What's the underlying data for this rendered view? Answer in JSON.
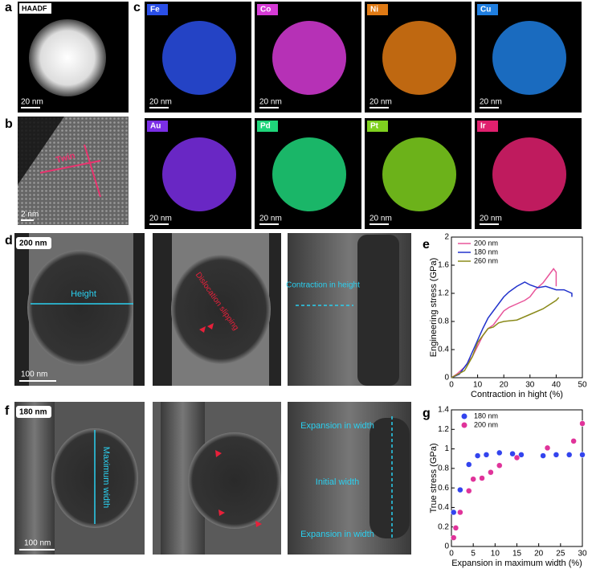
{
  "panel_labels": [
    "a",
    "b",
    "c",
    "d",
    "e",
    "f",
    "g"
  ],
  "panel_a": {
    "label": "HAADF",
    "scale_bar": "20 nm"
  },
  "panel_b": {
    "annotation": "Twin",
    "scale_bar": "2 nm"
  },
  "panel_c": {
    "maps": [
      {
        "element": "Fe",
        "color": "#2a4fe8",
        "scale_bar": "20 nm"
      },
      {
        "element": "Co",
        "color": "#d63ad6",
        "scale_bar": "20 nm"
      },
      {
        "element": "Ni",
        "color": "#e07a14",
        "scale_bar": "20 nm"
      },
      {
        "element": "Cu",
        "color": "#1f7ee0",
        "scale_bar": "20 nm"
      },
      {
        "element": "Au",
        "color": "#7b2ee6",
        "scale_bar": "20 nm"
      },
      {
        "element": "Pd",
        "color": "#1fd67a",
        "scale_bar": "20 nm"
      },
      {
        "element": "Pt",
        "color": "#7fd11f",
        "scale_bar": "20 nm"
      },
      {
        "element": "Ir",
        "color": "#e0206e",
        "scale_bar": "20 nm"
      }
    ]
  },
  "panel_d": {
    "tag": "200 nm",
    "scale_bar": "100 nm",
    "height": "Height",
    "dislocation": "Dislocation slipping",
    "contraction": "Contraction in height"
  },
  "panel_f": {
    "tag": "180 nm",
    "scale_bar": "100 nm",
    "maximum_width": "Maximum width",
    "expansion_top": "Expansion in width",
    "initial_width": "Initial width",
    "expansion_bottom": "Expansion in width"
  },
  "chart_data": [
    {
      "type": "line",
      "x_label": "Contraction in hight (%)",
      "y_label": "Engineering stress (GPa)",
      "xlim": [
        0,
        50
      ],
      "xticks": [
        0,
        10,
        20,
        30,
        40,
        50
      ],
      "ylim": [
        0,
        2
      ],
      "yticks": [
        0,
        0.4,
        0.8,
        1.2,
        1.6,
        2
      ],
      "legend": "top-left",
      "series": [
        {
          "name": "200 nm",
          "color": "#e8559a",
          "x": [
            0,
            2,
            5,
            8,
            10,
            12,
            14,
            16,
            18,
            20,
            22,
            25,
            28,
            30,
            32,
            35,
            37,
            39,
            40,
            40
          ],
          "values": [
            0,
            0.05,
            0.15,
            0.3,
            0.45,
            0.6,
            0.7,
            0.75,
            0.85,
            0.95,
            1.0,
            1.05,
            1.1,
            1.15,
            1.25,
            1.35,
            1.45,
            1.55,
            1.5,
            1.3
          ]
        },
        {
          "name": "180 nm",
          "color": "#2233cc",
          "x": [
            0,
            3,
            6,
            9,
            12,
            14,
            16,
            18,
            20,
            22,
            25,
            28,
            30,
            33,
            36,
            40,
            43,
            46,
            46
          ],
          "values": [
            0,
            0.05,
            0.2,
            0.45,
            0.7,
            0.85,
            0.95,
            1.05,
            1.15,
            1.22,
            1.3,
            1.36,
            1.32,
            1.28,
            1.3,
            1.25,
            1.25,
            1.2,
            1.15
          ]
        },
        {
          "name": "260 nm",
          "color": "#8a8a1a",
          "x": [
            0,
            5,
            8,
            10,
            12,
            14,
            16,
            18,
            20,
            25,
            30,
            35,
            40,
            41
          ],
          "values": [
            0,
            0.1,
            0.3,
            0.5,
            0.6,
            0.7,
            0.72,
            0.78,
            0.8,
            0.82,
            0.9,
            0.98,
            1.1,
            1.14
          ]
        }
      ]
    },
    {
      "type": "scatter",
      "x_label": "Expansion in maximum width (%)",
      "y_label": "True stress (GPa)",
      "xlim": [
        0,
        30
      ],
      "xticks": [
        0,
        5,
        10,
        15,
        20,
        25,
        30
      ],
      "ylim": [
        0,
        1.4
      ],
      "yticks": [
        0,
        0.2,
        0.4,
        0.6,
        0.8,
        1,
        1.2,
        1.4
      ],
      "legend": "top-left",
      "series": [
        {
          "name": "180 nm",
          "color": "#3344ee",
          "x": [
            0.5,
            2,
            4,
            6,
            8,
            11,
            14,
            16,
            21,
            24,
            27,
            30
          ],
          "values": [
            0.35,
            0.58,
            0.84,
            0.93,
            0.94,
            0.96,
            0.95,
            0.94,
            0.93,
            0.94,
            0.94,
            0.94
          ]
        },
        {
          "name": "200 nm",
          "color": "#e0339a",
          "x": [
            0.5,
            1,
            2,
            4,
            5,
            7,
            9,
            11,
            15,
            22,
            28,
            30
          ],
          "values": [
            0.09,
            0.19,
            0.35,
            0.57,
            0.69,
            0.7,
            0.76,
            0.83,
            0.91,
            1.01,
            1.08,
            1.26
          ]
        }
      ]
    }
  ]
}
